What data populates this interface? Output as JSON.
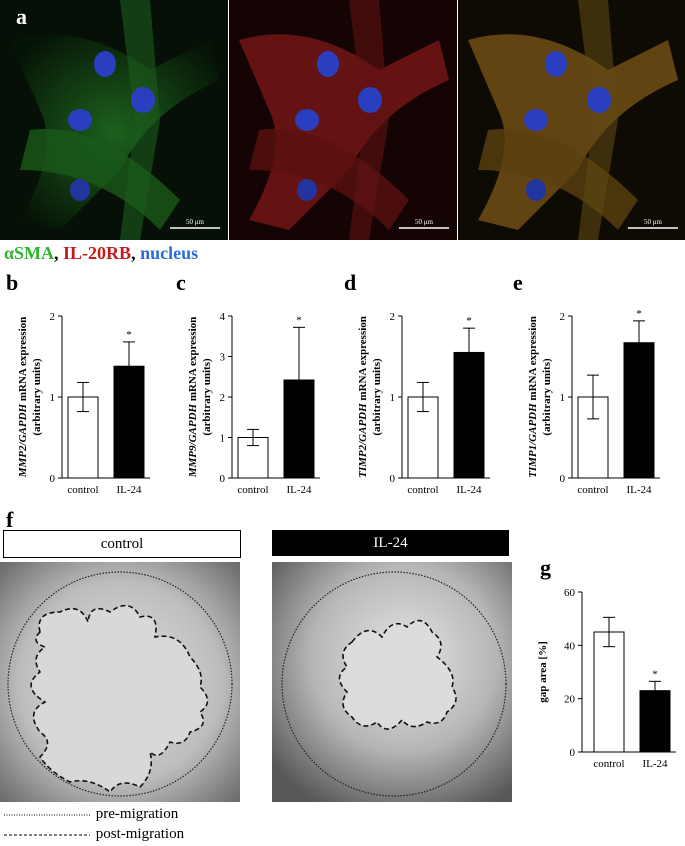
{
  "panels": {
    "a": "a",
    "b": "b",
    "c": "c",
    "d": "d",
    "e": "e",
    "f": "f",
    "g": "g"
  },
  "stain": {
    "asma": "αSMA",
    "sep1": ", ",
    "il20rb": "IL-20RB",
    "sep2": ", ",
    "nucleus": "nucleus",
    "colors": {
      "asma": "#2db52d",
      "il20rb": "#c41a1a",
      "nucleus": "#2b6cd8"
    }
  },
  "scale_bar": "50 μm",
  "wound_headers": {
    "control": "control",
    "il24": "IL-24"
  },
  "wound_legend": {
    "pre": "pre-migration",
    "post": "post-migration"
  },
  "chart_data": [
    {
      "type": "bar",
      "panel": "b",
      "categories": [
        "control",
        "IL-24"
      ],
      "values": [
        1.0,
        1.38
      ],
      "errors": [
        0.18,
        0.3
      ],
      "significance": [
        "",
        "*"
      ],
      "ylabel_gene": "MMP2/GAPDH",
      "ylabel_rest": " mRNA expression",
      "ylabel_units": "(arbitrary units)",
      "ylim": [
        0,
        2
      ],
      "yticks": [
        "0",
        "1",
        "2"
      ]
    },
    {
      "type": "bar",
      "panel": "c",
      "categories": [
        "control",
        "IL-24"
      ],
      "values": [
        1.0,
        2.42
      ],
      "errors": [
        0.2,
        1.3
      ],
      "significance": [
        "",
        "*"
      ],
      "ylabel_gene": "MMP9/GAPDH",
      "ylabel_rest": " mRNA expression",
      "ylabel_units": "(arbitrary units)",
      "ylim": [
        0,
        4
      ],
      "yticks": [
        "0",
        "1",
        "2",
        "3",
        "4"
      ]
    },
    {
      "type": "bar",
      "panel": "d",
      "categories": [
        "control",
        "IL-24"
      ],
      "values": [
        1.0,
        1.55
      ],
      "errors": [
        0.18,
        0.3
      ],
      "significance": [
        "",
        "*"
      ],
      "ylabel_gene": "TIMP2/GAPDH",
      "ylabel_rest": " mRNA expression",
      "ylabel_units": "(arbitrary units)",
      "ylim": [
        0,
        2
      ],
      "yticks": [
        "0",
        "1",
        "2"
      ]
    },
    {
      "type": "bar",
      "panel": "e",
      "categories": [
        "control",
        "IL-24"
      ],
      "values": [
        1.0,
        1.67
      ],
      "errors": [
        0.27,
        0.27
      ],
      "significance": [
        "",
        "*"
      ],
      "ylabel_gene": "TIMP1/GAPDH",
      "ylabel_rest": " mRNA expression",
      "ylabel_units": "(arbitrary units)",
      "ylim": [
        0,
        2
      ],
      "yticks": [
        "0",
        "1",
        "2"
      ]
    },
    {
      "type": "bar",
      "panel": "g",
      "categories": [
        "control",
        "IL-24"
      ],
      "values": [
        45,
        23
      ],
      "errors": [
        5.5,
        3.5
      ],
      "significance": [
        "",
        "*"
      ],
      "ylabel_gene": "",
      "ylabel_rest": "gap area [%]",
      "ylabel_units": "",
      "ylim": [
        0,
        60
      ],
      "yticks": [
        "0",
        "20",
        "40",
        "60"
      ]
    }
  ]
}
